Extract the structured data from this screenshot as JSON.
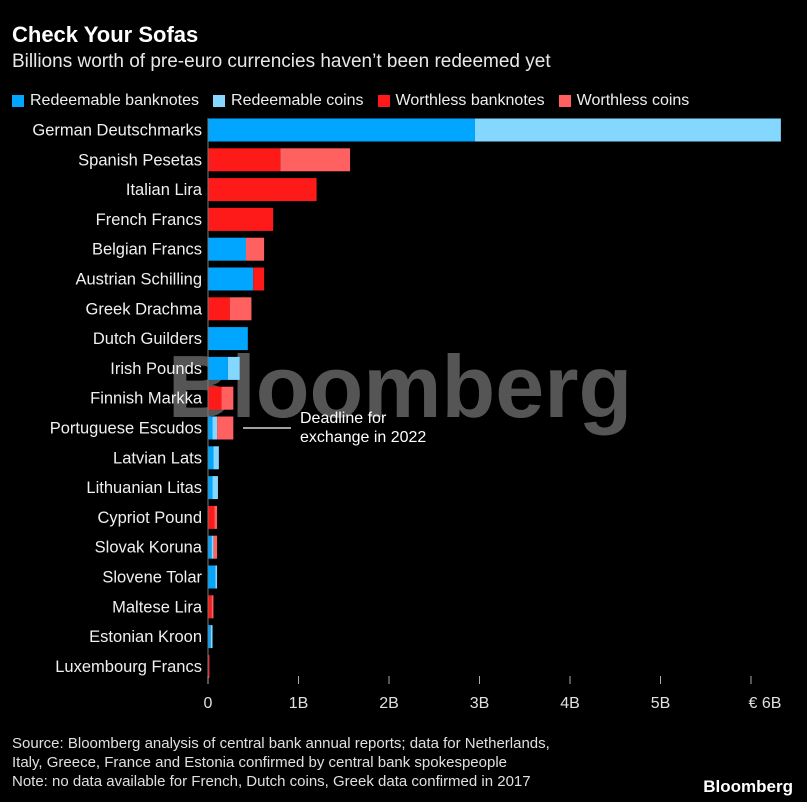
{
  "title": "Check Your Sofas",
  "subtitle": "Billions worth of pre-euro currencies haven’t been redeemed yet",
  "legend": [
    {
      "label": "Redeemable banknotes",
      "color": "#00a6ff"
    },
    {
      "label": "Redeemable coins",
      "color": "#84d7ff"
    },
    {
      "label": "Worthless banknotes",
      "color": "#ff1a1a"
    },
    {
      "label": "Worthless coins",
      "color": "#ff6161"
    }
  ],
  "chart_data": {
    "type": "bar",
    "orientation": "horizontal",
    "stacked": true,
    "categories": [
      "German Deutschmarks",
      "Spanish Pesetas",
      "Italian Lira",
      "French Francs",
      "Belgian Francs",
      "Austrian Schilling",
      "Greek Drachma",
      "Dutch Guilders",
      "Irish Pounds",
      "Finnish Markka",
      "Portuguese Escudos",
      "Latvian Lats",
      "Lithuanian Litas",
      "Cypriot Pound",
      "Slovak Koruna",
      "Slovene Tolar",
      "Maltese Lira",
      "Estonian Kroon",
      "Luxembourg Francs"
    ],
    "series": [
      {
        "name": "Redeemable banknotes",
        "color": "#00a6ff",
        "values": [
          2.95,
          0,
          0,
          0,
          0.42,
          0.5,
          0,
          0.44,
          0.22,
          0,
          0.05,
          0.06,
          0.05,
          0,
          0.04,
          0.08,
          0,
          0.03,
          0
        ]
      },
      {
        "name": "Redeemable coins",
        "color": "#84d7ff",
        "values": [
          3.38,
          0,
          0,
          0,
          0,
          0,
          0,
          0,
          0.13,
          0,
          0.05,
          0.06,
          0.06,
          0,
          0.02,
          0.02,
          0,
          0.02,
          0.0
        ]
      },
      {
        "name": "Worthless banknotes",
        "color": "#ff1a1a",
        "values": [
          0,
          0.8,
          1.2,
          0.72,
          0,
          0.12,
          0.24,
          0,
          0,
          0.15,
          0,
          0,
          0,
          0.07,
          0,
          0,
          0.04,
          0,
          0.01
        ]
      },
      {
        "name": "Worthless coins",
        "color": "#ff6161",
        "values": [
          0,
          0.77,
          0,
          0,
          0.2,
          0,
          0.24,
          0,
          0,
          0.13,
          0.18,
          0,
          0,
          0.03,
          0.04,
          0,
          0.02,
          0,
          0
        ]
      }
    ],
    "x_ticks": [
      "0",
      "1B",
      "2B",
      "3B",
      "4B",
      "5B",
      "€ 6B"
    ],
    "xlim": [
      0,
      6.3
    ],
    "annotation": {
      "lines": [
        "Deadline for",
        "exchange in 2022"
      ],
      "target": "Portuguese Escudos"
    },
    "watermark": "Bloomberg"
  },
  "source_lines": [
    "Source: Bloomberg analysis of central bank annual reports; data for Netherlands,",
    "Italy, Greece, France and Estonia confirmed by central bank spokespeople",
    "Note: no data available for French, Dutch coins, Greek data confirmed in 2017"
  ],
  "logo": "Bloomberg"
}
